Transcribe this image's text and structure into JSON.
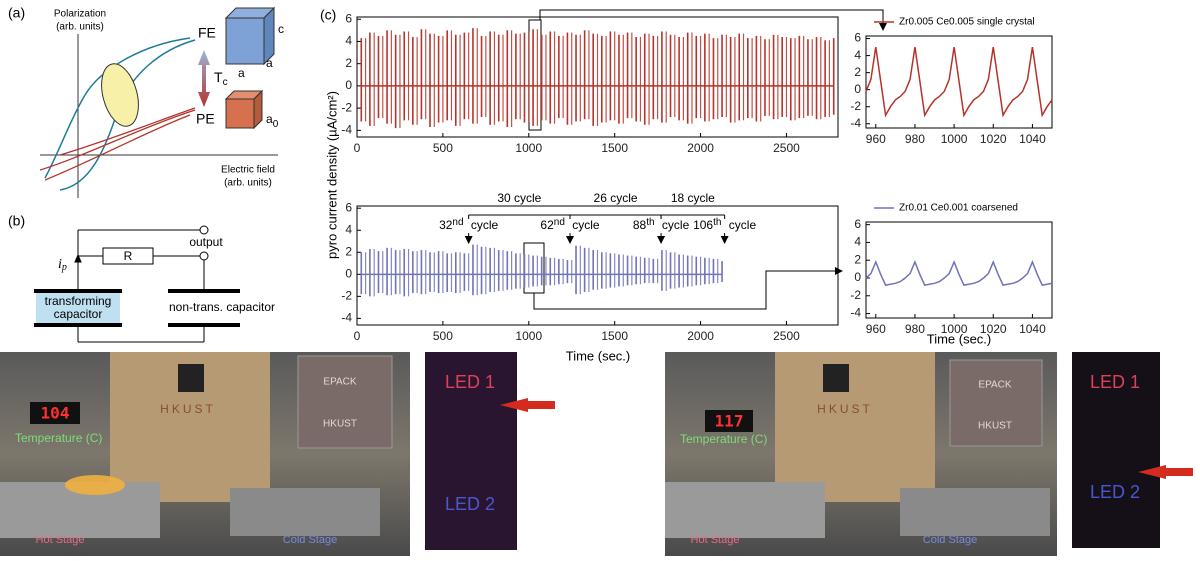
{
  "panel_a": {
    "label": "(a)",
    "y_axis": [
      "Polarization",
      "(arb. units)"
    ],
    "x_axis": [
      "Electric field",
      "(arb. units)"
    ],
    "fe": "FE",
    "pe": "PE",
    "transition": "T",
    "transition_sub": "c",
    "cube_fe": [
      "c",
      "a",
      "a"
    ],
    "cube_pe": "a",
    "cube_pe_sub": "0"
  },
  "panel_b": {
    "label": "(b)",
    "resistor": "R",
    "output": "output",
    "current": "i",
    "current_sub": "p",
    "left_cap": [
      "transforming",
      "capacitor"
    ],
    "right_cap": "non-trans. capacitor"
  },
  "panel_c": {
    "label": "(c)",
    "y_axis": "pyro current density (µA/cm²)",
    "x_axis": "Time (sec.)",
    "inset_x_axis": "Time (sec.)"
  },
  "chart_data": [
    {
      "type": "envelope",
      "color": "#b5332a",
      "x": [
        25,
        75,
        125,
        175,
        225,
        275,
        325,
        375,
        425,
        475,
        525,
        575,
        625,
        675,
        725,
        775,
        825,
        875,
        925,
        975,
        1025,
        1075,
        1125,
        1175,
        1225,
        1275,
        1325,
        1375,
        1425,
        1475,
        1525,
        1575,
        1625,
        1675,
        1725,
        1775,
        1825,
        1875,
        1925,
        1975,
        2025,
        2075,
        2125,
        2175,
        2225,
        2275,
        2325,
        2375,
        2425,
        2475,
        2525,
        2575,
        2625,
        2675,
        2725,
        2775
      ],
      "max": [
        4.3,
        4.8,
        4.5,
        5.0,
        4.6,
        4.9,
        4.4,
        5.1,
        4.7,
        4.5,
        5.0,
        4.6,
        4.8,
        5.2,
        4.5,
        4.9,
        4.6,
        5.0,
        4.7,
        4.8,
        5.1,
        4.6,
        4.9,
        4.5,
        4.8,
        4.6,
        5.0,
        4.7,
        4.5,
        4.9,
        4.6,
        4.8,
        4.4,
        4.7,
        4.5,
        4.9,
        4.6,
        4.4,
        4.8,
        4.5,
        4.7,
        4.3,
        4.6,
        4.4,
        4.7,
        4.3,
        4.5,
        4.2,
        4.6,
        4.4,
        4.3,
        4.5,
        4.2,
        4.4,
        4.1,
        4.3
      ],
      "min": [
        -3.2,
        -3.6,
        -2.9,
        -3.4,
        -3.8,
        -3.1,
        -3.5,
        -3.0,
        -3.7,
        -3.3,
        -3.1,
        -3.6,
        -3.0,
        -3.4,
        -2.8,
        -3.5,
        -3.2,
        -3.7,
        -3.0,
        -3.3,
        -3.6,
        -3.1,
        -3.4,
        -2.9,
        -3.5,
        -3.2,
        -3.0,
        -3.6,
        -3.3,
        -3.1,
        -3.4,
        -2.9,
        -3.2,
        -3.5,
        -3.0,
        -3.3,
        -2.8,
        -3.1,
        -3.4,
        -2.9,
        -3.2,
        -3.0,
        -2.8,
        -3.3,
        -3.1,
        -2.9,
        -3.2,
        -2.7,
        -3.0,
        -2.8,
        -3.1,
        -2.9,
        -2.7,
        -3.0,
        -2.8,
        -2.6
      ],
      "xlim": [
        0,
        2800
      ],
      "ylim": [
        -4.6,
        6.2
      ],
      "xticks": [
        0,
        500,
        1000,
        1500,
        2000,
        2500
      ],
      "yticks": [
        -4,
        -2,
        0,
        2,
        4,
        6
      ]
    },
    {
      "type": "envelope",
      "color": "#6f73b8",
      "x": [
        25,
        75,
        125,
        175,
        225,
        275,
        325,
        375,
        425,
        475,
        525,
        575,
        625,
        675,
        725,
        775,
        825,
        875,
        925,
        975,
        1025,
        1075,
        1125,
        1175,
        1225,
        1275,
        1325,
        1375,
        1425,
        1475,
        1525,
        1575,
        1625,
        1675,
        1725,
        1775,
        1825,
        1875,
        1925,
        1975,
        2025,
        2075,
        2125
      ],
      "max": [
        2.0,
        2.3,
        2.1,
        2.4,
        2.2,
        2.3,
        2.1,
        2.2,
        2.0,
        2.1,
        1.9,
        2.0,
        1.9,
        2.7,
        2.5,
        2.4,
        2.2,
        2.1,
        1.9,
        1.8,
        1.7,
        1.6,
        1.5,
        1.4,
        1.3,
        2.6,
        2.4,
        2.2,
        2.0,
        1.9,
        1.8,
        1.7,
        1.6,
        1.5,
        1.4,
        2.2,
        2.0,
        1.8,
        1.7,
        1.6,
        1.5,
        1.4,
        1.2
      ],
      "min": [
        -1.8,
        -2.0,
        -1.7,
        -1.9,
        -1.8,
        -2.0,
        -1.7,
        -1.8,
        -1.6,
        -1.7,
        -1.6,
        -1.7,
        -1.5,
        -1.9,
        -1.8,
        -1.6,
        -1.5,
        -1.4,
        -1.3,
        -1.2,
        -1.1,
        -1.0,
        -1.0,
        -0.9,
        -0.8,
        -1.8,
        -1.6,
        -1.4,
        -1.3,
        -1.2,
        -1.1,
        -1.0,
        -0.9,
        -0.8,
        -0.8,
        -1.5,
        -1.3,
        -1.2,
        -1.1,
        -1.0,
        -0.9,
        -0.8,
        -0.7
      ],
      "xlim": [
        0,
        2800
      ],
      "ylim": [
        -4.6,
        6.2
      ],
      "xticks": [
        0,
        500,
        1000,
        1500,
        2000,
        2500
      ],
      "yticks": [
        -4,
        -2,
        0,
        2,
        4,
        6
      ],
      "markers": [
        {
          "x": 650,
          "number": "32",
          "suffix": "nd",
          "word": "cycle"
        },
        {
          "x": 1240,
          "number": "62",
          "suffix": "nd",
          "word": "cycle"
        },
        {
          "x": 1770,
          "number": "88",
          "suffix": "th",
          "word": "cycle"
        },
        {
          "x": 2140,
          "number": "106",
          "suffix": "th",
          "word": "cycle"
        }
      ],
      "spans": [
        "30 cycle",
        "26 cycle",
        "18 cycle"
      ]
    },
    {
      "type": "line",
      "x": [
        955,
        957.5,
        960,
        962.5,
        965,
        967.5,
        970,
        972.5,
        975,
        977.5,
        980,
        982.5,
        985,
        987.5,
        990,
        992.5,
        995,
        997.5,
        1000,
        1002.5,
        1005,
        1007.5,
        1010,
        1012.5,
        1015,
        1017.5,
        1020,
        1022.5,
        1025,
        1027.5,
        1030,
        1032.5,
        1035,
        1037.5,
        1040,
        1042.5,
        1045,
        1047.5,
        1050
      ],
      "series": [
        {
          "name": "Zr0.005 Ce0.005 single crystal",
          "color": "#b5332a",
          "values": [
            -0.2,
            1.2,
            5,
            1,
            -3,
            -2,
            -1.2,
            -0.8,
            -0.2,
            1.2,
            5,
            1,
            -3,
            -2,
            -1.2,
            -0.8,
            -0.2,
            1.2,
            5,
            1,
            -3,
            -2,
            -1.2,
            -0.8,
            -0.2,
            1.2,
            5,
            1,
            -3,
            -2,
            -1.2,
            -0.8,
            -0.2,
            1.2,
            5,
            1,
            -3,
            -2,
            -1.2
          ]
        }
      ],
      "xlim": [
        955,
        1050
      ],
      "ylim": [
        -4.5,
        6.3
      ],
      "xticks": [
        960,
        980,
        1000,
        1020,
        1040
      ],
      "yticks": [
        -4,
        -2,
        0,
        2,
        4,
        6
      ]
    },
    {
      "type": "line",
      "x": [
        955,
        957.5,
        960,
        962.5,
        965,
        967.5,
        970,
        972.5,
        975,
        977.5,
        980,
        982.5,
        985,
        987.5,
        990,
        992.5,
        995,
        997.5,
        1000,
        1002.5,
        1005,
        1007.5,
        1010,
        1012.5,
        1015,
        1017.5,
        1020,
        1022.5,
        1025,
        1027.5,
        1030,
        1032.5,
        1035,
        1037.5,
        1040,
        1042.5,
        1045,
        1047.5,
        1050
      ],
      "series": [
        {
          "name": "Zr0.01 Ce0.001 coarsened",
          "color": "#6f73b8",
          "values": [
            0,
            0.5,
            1.8,
            0.4,
            -0.8,
            -0.7,
            -0.6,
            -0.4,
            0,
            0.5,
            1.8,
            0.4,
            -0.8,
            -0.7,
            -0.6,
            -0.4,
            0,
            0.5,
            1.8,
            0.4,
            -0.8,
            -0.7,
            -0.6,
            -0.4,
            0,
            0.5,
            1.8,
            0.4,
            -0.8,
            -0.7,
            -0.6,
            -0.4,
            0,
            0.5,
            1.8,
            0.4,
            -0.8,
            -0.7,
            -0.6
          ]
        }
      ],
      "xlim": [
        955,
        1050
      ],
      "ylim": [
        -4.5,
        6.3
      ],
      "xticks": [
        960,
        980,
        1000,
        1020,
        1040
      ],
      "yticks": [
        -4,
        -2,
        0,
        2,
        4,
        6
      ]
    }
  ],
  "photos": [
    {
      "display": "104",
      "temperature_label": "Temperature (C)",
      "board": "HKUST",
      "screen": [
        "EPACK",
        "HKUST"
      ],
      "hot": "Hot Stage",
      "cold": "Cold Stage",
      "leds": [
        "LED 1",
        "LED 2"
      ]
    },
    {
      "display": "117",
      "temperature_label": "Temperature (C)",
      "board": "HKUST",
      "screen": [
        "EPACK",
        "HKUST"
      ],
      "hot": "Hot Stage",
      "cold": "Cold Stage",
      "leds": [
        "LED 1",
        "LED 2"
      ]
    }
  ]
}
